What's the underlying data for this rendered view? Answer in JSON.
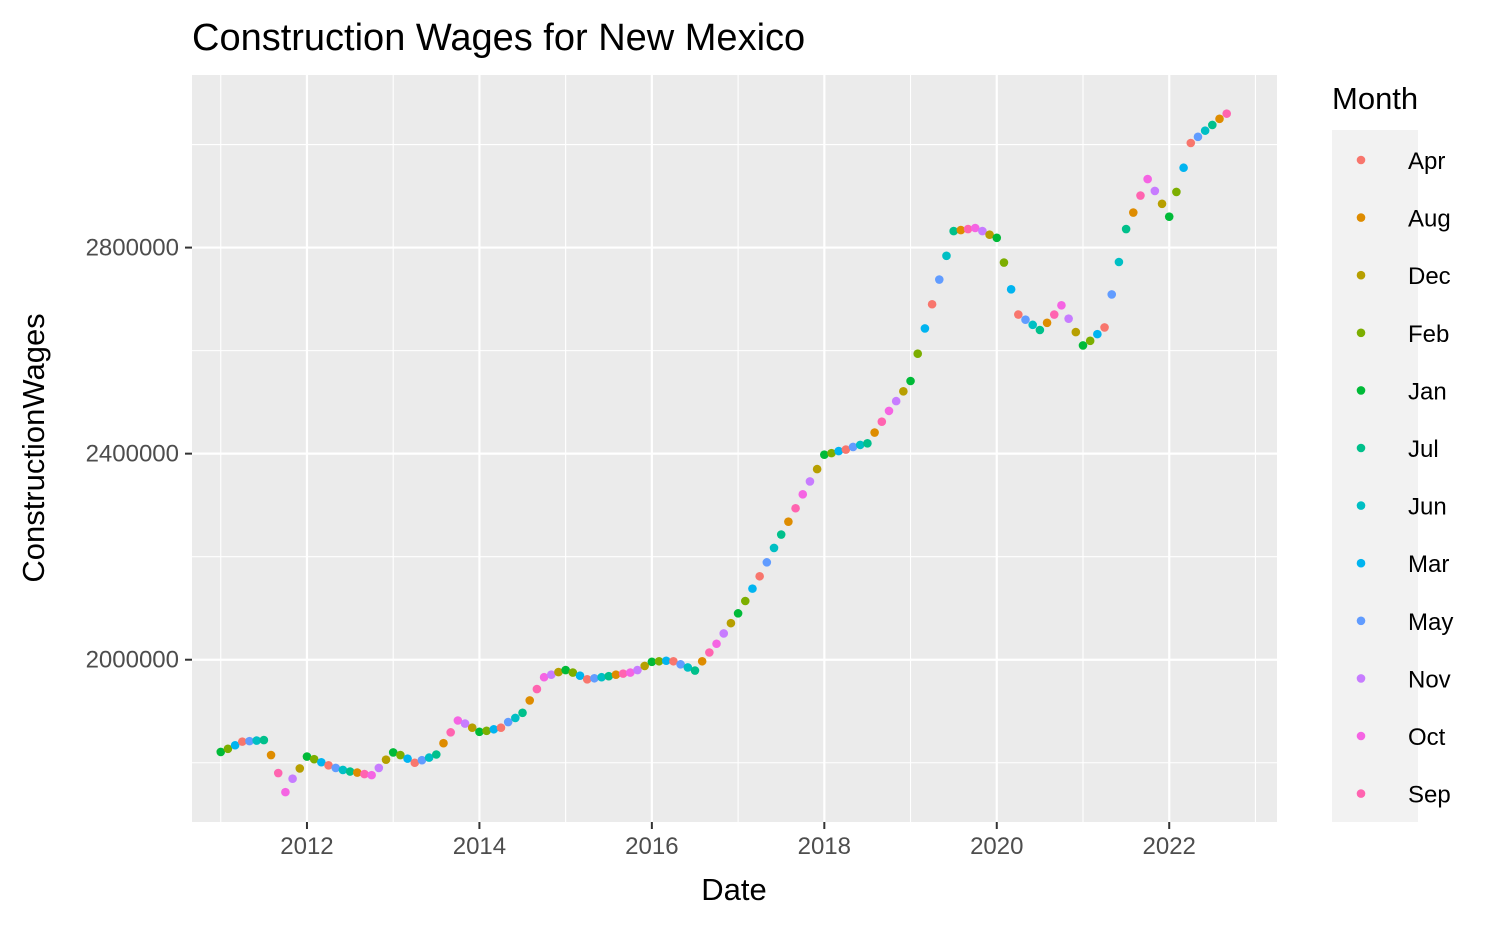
{
  "chart_data": {
    "type": "scatter",
    "title": "Construction Wages for New Mexico",
    "xlabel": "Date",
    "ylabel": "ConstructionWages",
    "x_ticks": [
      "2012",
      "2014",
      "2016",
      "2018",
      "2020",
      "2022"
    ],
    "y_ticks": [
      "2000000",
      "2400000",
      "2800000"
    ],
    "xlim": [
      "2010-09",
      "2023-04"
    ],
    "ylim": [
      1685000,
      3135000
    ],
    "grid": true,
    "legend": {
      "title": "Month",
      "position": "right",
      "entries": [
        {
          "label": "Apr",
          "color": "#F8766D"
        },
        {
          "label": "Aug",
          "color": "#DE8C00"
        },
        {
          "label": "Dec",
          "color": "#B79F00"
        },
        {
          "label": "Feb",
          "color": "#7CAE00"
        },
        {
          "label": "Jan",
          "color": "#00BA38"
        },
        {
          "label": "Jul",
          "color": "#00C08B"
        },
        {
          "label": "Jun",
          "color": "#00BFC4"
        },
        {
          "label": "Mar",
          "color": "#00B4F0"
        },
        {
          "label": "May",
          "color": "#619CFF"
        },
        {
          "label": "Nov",
          "color": "#C77CFF"
        },
        {
          "label": "Oct",
          "color": "#F564E3"
        },
        {
          "label": "Sep",
          "color": "#FF64B0"
        }
      ]
    },
    "series": [
      {
        "year": 2011,
        "values": [
          1821000,
          1827000,
          1834000,
          1841000,
          1842000,
          1843000,
          1844000,
          1815000,
          1780000,
          1743000,
          1769000,
          1789000
        ]
      },
      {
        "year": 2012,
        "values": [
          1812000,
          1807000,
          1801000,
          1795000,
          1790000,
          1786000,
          1783000,
          1781000,
          1778000,
          1776000,
          1790000,
          1806000
        ]
      },
      {
        "year": 2013,
        "values": [
          1820000,
          1815000,
          1808000,
          1800000,
          1805000,
          1810000,
          1816000,
          1838000,
          1859000,
          1882000,
          1876000,
          1868000
        ]
      },
      {
        "year": 2014,
        "values": [
          1860000,
          1862000,
          1865000,
          1868000,
          1879000,
          1887000,
          1897000,
          1921000,
          1943000,
          1966000,
          1971000,
          1976000
        ]
      },
      {
        "year": 2015,
        "values": [
          1980000,
          1975000,
          1969000,
          1962000,
          1964000,
          1966000,
          1968000,
          1971000,
          1973000,
          1975000,
          1980000,
          1988000
        ]
      },
      {
        "year": 2016,
        "values": [
          1996000,
          1997000,
          1998000,
          1997000,
          1991000,
          1985000,
          1979000,
          1997000,
          2014000,
          2031000,
          2051000,
          2071000
        ]
      },
      {
        "year": 2017,
        "values": [
          2090000,
          2114000,
          2138000,
          2162000,
          2189000,
          2217000,
          2243000,
          2268000,
          2294000,
          2321000,
          2346000,
          2370000
        ]
      },
      {
        "year": 2018,
        "values": [
          2398000,
          2401000,
          2405000,
          2408000,
          2413000,
          2417000,
          2420000,
          2441000,
          2462000,
          2483000,
          2502000,
          2521000
        ]
      },
      {
        "year": 2019,
        "values": [
          2541000,
          2594000,
          2643000,
          2690000,
          2738000,
          2784000,
          2832000,
          2834000,
          2836000,
          2838000,
          2832000,
          2825000
        ]
      },
      {
        "year": 2020,
        "values": [
          2819000,
          2771000,
          2719000,
          2670000,
          2660000,
          2650000,
          2640000,
          2654000,
          2670000,
          2688000,
          2662000,
          2636000
        ]
      },
      {
        "year": 2021,
        "values": [
          2610000,
          2619000,
          2632000,
          2645000,
          2709000,
          2772000,
          2836000,
          2868000,
          2901000,
          2933000,
          2910000,
          2885000
        ]
      },
      {
        "year": 2022,
        "values": [
          2860000,
          2908000,
          2955000,
          3003000,
          3015000,
          3027000,
          3038000,
          3050000,
          3060000
        ]
      }
    ],
    "month_order": [
      "Jan",
      "Feb",
      "Mar",
      "Apr",
      "May",
      "Jun",
      "Jul",
      "Aug",
      "Sep",
      "Oct",
      "Nov",
      "Dec"
    ]
  }
}
